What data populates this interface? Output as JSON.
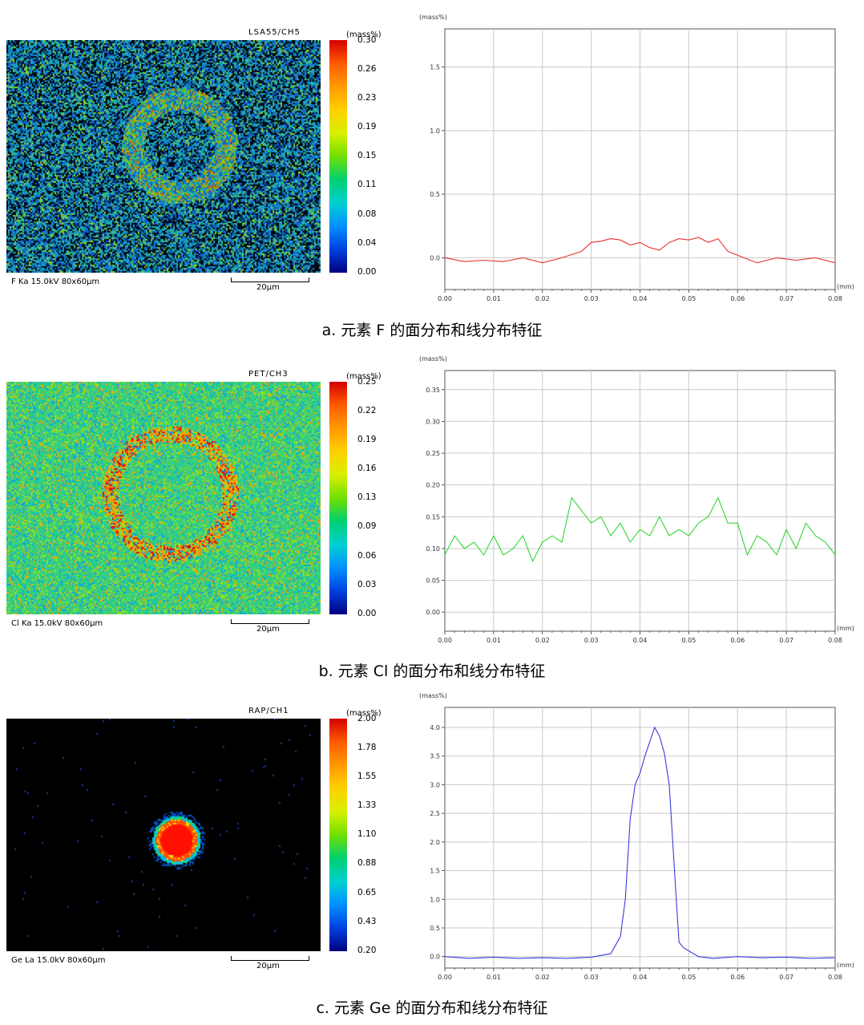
{
  "panels": [
    {
      "map": {
        "code": "LSA55/CH5",
        "unit": "(mass%)",
        "ticks": [
          "0.30",
          "0.26",
          "0.23",
          "0.19",
          "0.15",
          "0.11",
          "0.08",
          "0.04",
          "0.00"
        ],
        "caption": "F  Ka 15.0kV 80x60μm",
        "scale": "20μm",
        "kind": "F"
      },
      "caption": "a. 元素 F 的面分布和线分布特征"
    },
    {
      "map": {
        "code": "PET/CH3",
        "unit": "(mass%)",
        "ticks": [
          "0.25",
          "0.22",
          "0.19",
          "0.16",
          "0.13",
          "0.09",
          "0.06",
          "0.03",
          "0.00"
        ],
        "caption": "Cl Ka 15.0kV 80x60μm",
        "scale": "20μm",
        "kind": "Cl"
      },
      "caption": "b. 元素 Cl 的面分布和线分布特征"
    },
    {
      "map": {
        "code": "RAP/CH1",
        "unit": "(mass%)",
        "ticks": [
          "2.00",
          "1.78",
          "1.55",
          "1.33",
          "1.10",
          "0.88",
          "0.65",
          "0.43",
          "0.20"
        ],
        "caption": "Ge La 15.0kV 80x60μm",
        "scale": "20μm",
        "kind": "Ge"
      },
      "caption": "c. 元素 Ge 的面分布和线分布特征"
    }
  ],
  "chart_data": [
    {
      "type": "line",
      "ylabel": "(mass%)",
      "xlabel": "(mm)",
      "xlim": [
        0,
        0.08
      ],
      "ylim": [
        -0.25,
        1.8
      ],
      "xticks": [
        "0.00",
        "0.01",
        "0.02",
        "0.03",
        "0.04",
        "0.05",
        "0.06",
        "0.07",
        "0.08"
      ],
      "yticks": [
        0.0,
        0.5,
        1.0,
        1.5
      ],
      "ytick_labels": [
        "0.0",
        "0.5",
        "1.0",
        "1.5"
      ],
      "color": "#e83030",
      "x": [
        0,
        0.004,
        0.008,
        0.012,
        0.016,
        0.02,
        0.024,
        0.028,
        0.03,
        0.032,
        0.034,
        0.036,
        0.038,
        0.04,
        0.042,
        0.044,
        0.046,
        0.048,
        0.05,
        0.052,
        0.054,
        0.056,
        0.058,
        0.06,
        0.064,
        0.068,
        0.072,
        0.076,
        0.08
      ],
      "y": [
        0.0,
        -0.03,
        -0.02,
        -0.03,
        0.0,
        -0.04,
        0.0,
        0.05,
        0.12,
        0.13,
        0.15,
        0.14,
        0.1,
        0.12,
        0.08,
        0.06,
        0.12,
        0.15,
        0.14,
        0.16,
        0.12,
        0.15,
        0.05,
        0.02,
        -0.04,
        0.0,
        -0.02,
        0.0,
        -0.04
      ]
    },
    {
      "type": "line",
      "ylabel": "(mass%)",
      "xlabel": "(mm)",
      "xlim": [
        0,
        0.08
      ],
      "ylim": [
        -0.03,
        0.38
      ],
      "xticks": [
        "0.00",
        "0.01",
        "0.02",
        "0.03",
        "0.04",
        "0.05",
        "0.06",
        "0.07",
        "0.08"
      ],
      "yticks": [
        0.0,
        0.05,
        0.1,
        0.15,
        0.2,
        0.25,
        0.3,
        0.35
      ],
      "ytick_labels": [
        "0.00",
        "0.05",
        "0.10",
        "0.15",
        "0.20",
        "0.25",
        "0.30",
        "0.35"
      ],
      "color": "#33d633",
      "x": [
        0,
        0.002,
        0.004,
        0.006,
        0.008,
        0.01,
        0.012,
        0.014,
        0.016,
        0.018,
        0.02,
        0.022,
        0.024,
        0.026,
        0.028,
        0.03,
        0.032,
        0.034,
        0.036,
        0.038,
        0.04,
        0.042,
        0.044,
        0.046,
        0.048,
        0.05,
        0.052,
        0.054,
        0.056,
        0.058,
        0.06,
        0.062,
        0.064,
        0.066,
        0.068,
        0.07,
        0.072,
        0.074,
        0.076,
        0.078,
        0.08
      ],
      "y": [
        0.09,
        0.12,
        0.1,
        0.11,
        0.09,
        0.12,
        0.09,
        0.1,
        0.12,
        0.08,
        0.11,
        0.12,
        0.11,
        0.18,
        0.16,
        0.14,
        0.15,
        0.12,
        0.14,
        0.11,
        0.13,
        0.12,
        0.15,
        0.12,
        0.13,
        0.12,
        0.14,
        0.15,
        0.18,
        0.14,
        0.14,
        0.09,
        0.12,
        0.11,
        0.09,
        0.13,
        0.1,
        0.14,
        0.12,
        0.11,
        0.09
      ]
    },
    {
      "type": "line",
      "ylabel": "(mass%)",
      "xlabel": "(mm)",
      "xlim": [
        0,
        0.08
      ],
      "ylim": [
        -0.2,
        4.35
      ],
      "xticks": [
        "0.00",
        "0.01",
        "0.02",
        "0.03",
        "0.04",
        "0.05",
        "0.06",
        "0.07",
        "0.08"
      ],
      "yticks": [
        0.0,
        0.5,
        1.0,
        1.5,
        2.0,
        2.5,
        3.0,
        3.5,
        4.0
      ],
      "ytick_labels": [
        "0.0",
        "0.5",
        "1.0",
        "1.5",
        "2.0",
        "2.5",
        "3.0",
        "3.5",
        "4.0"
      ],
      "color": "#3a3ae0",
      "x": [
        0,
        0.005,
        0.01,
        0.015,
        0.02,
        0.025,
        0.03,
        0.034,
        0.036,
        0.037,
        0.038,
        0.039,
        0.04,
        0.041,
        0.042,
        0.043,
        0.044,
        0.045,
        0.046,
        0.047,
        0.048,
        0.049,
        0.05,
        0.052,
        0.055,
        0.06,
        0.065,
        0.07,
        0.075,
        0.08
      ],
      "y": [
        0.0,
        -0.03,
        -0.01,
        -0.03,
        -0.02,
        -0.03,
        -0.01,
        0.05,
        0.35,
        1.0,
        2.4,
        3.0,
        3.2,
        3.5,
        3.75,
        4.0,
        3.85,
        3.55,
        3.0,
        1.6,
        0.25,
        0.15,
        0.1,
        0.0,
        -0.03,
        0.0,
        -0.02,
        -0.01,
        -0.03,
        -0.02
      ]
    }
  ]
}
